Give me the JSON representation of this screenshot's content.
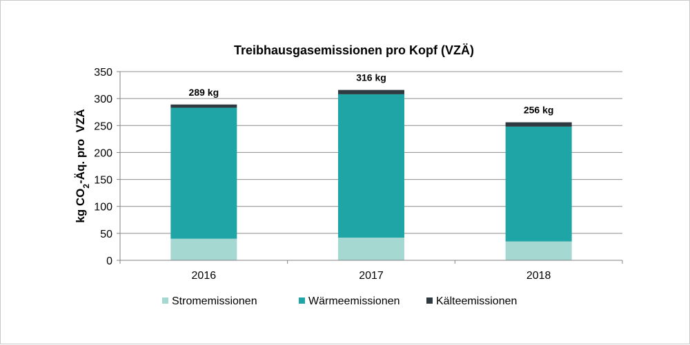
{
  "chart_data": {
    "type": "bar",
    "stacked": true,
    "title": "Treibhausgasemissionen pro Kopf (VZÄ)",
    "ylabel": {
      "prefix": "kg CO",
      "subscript": "2",
      "suffix": "-Äq. pro  VZÄ"
    },
    "xlabel": "",
    "categories": [
      "2016",
      "2017",
      "2018"
    ],
    "ylim": [
      0,
      350
    ],
    "yticks": [
      0,
      50,
      100,
      150,
      200,
      250,
      300,
      350
    ],
    "grid": true,
    "legend_position": "bottom",
    "series": [
      {
        "name": "Stromemissionen",
        "color": "#a6d8d2",
        "values": [
          40,
          42,
          35
        ]
      },
      {
        "name": "Wärmeemissionen",
        "color": "#1fa5a5",
        "values": [
          243,
          266,
          213
        ]
      },
      {
        "name": "Kälteemissionen",
        "color": "#2e3a40",
        "values": [
          6,
          8,
          8
        ]
      }
    ],
    "totals": [
      "289 kg",
      "316 kg",
      "256 kg"
    ]
  }
}
